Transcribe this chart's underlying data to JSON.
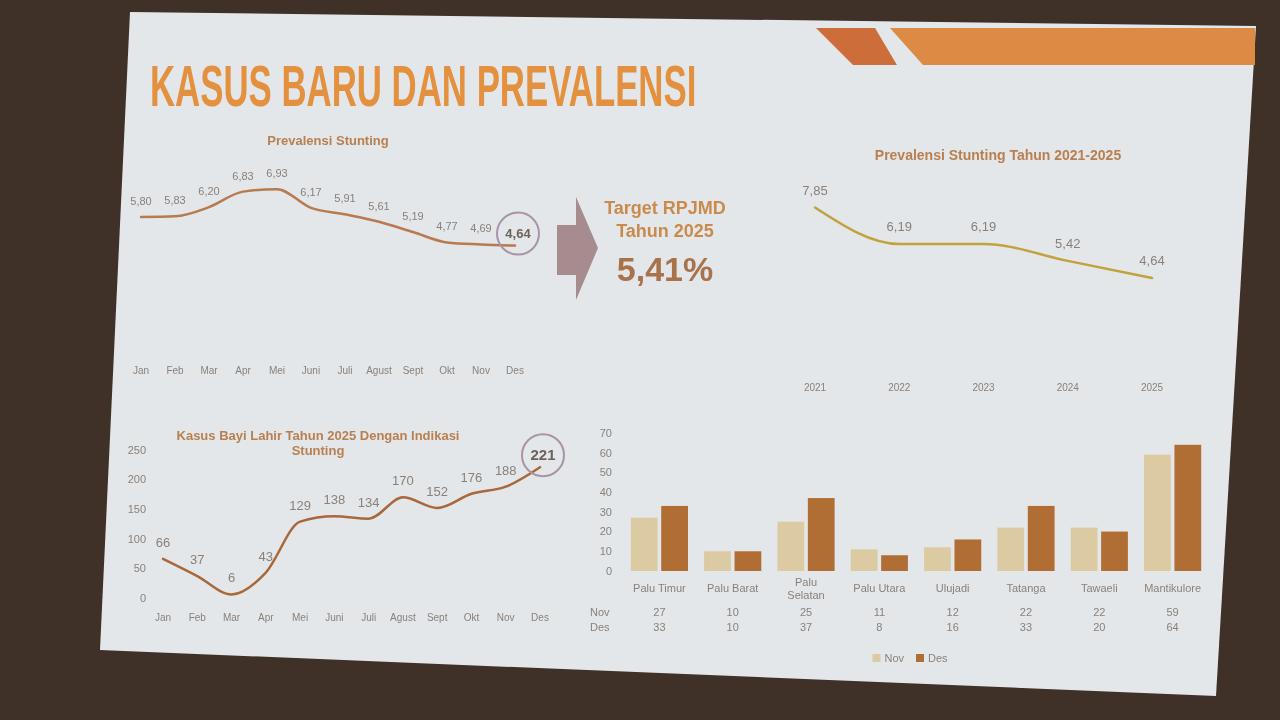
{
  "chart_data": [
    {
      "type": "other",
      "title": "KASUS BARU DAN PREVALENSI"
    },
    {
      "type": "line",
      "title": "Prevalensi Stunting",
      "categories": [
        "Jan",
        "Feb",
        "Mar",
        "Apr",
        "Mei",
        "Juni",
        "Juli",
        "Agust",
        "Sept",
        "Okt",
        "Nov",
        "Des"
      ],
      "values": [
        5.8,
        5.83,
        6.2,
        6.83,
        6.93,
        6.17,
        5.91,
        5.61,
        5.19,
        4.77,
        4.69,
        4.64
      ],
      "color": "#b87a4e",
      "value_labels": [
        "5,80",
        "5,83",
        "6,20",
        "6,83",
        "6,93",
        "6,17",
        "5,91",
        "5,61",
        "5,19",
        "4,77",
        "4,69",
        null
      ],
      "annotations": [
        {
          "text": "4,64",
          "x": "Des",
          "y": 4.64
        }
      ],
      "tick_labels": "x"
    },
    {
      "type": "other",
      "title": "Target RPJMD Tahun 2025",
      "annotations": [
        "5,41%"
      ]
    },
    {
      "type": "line",
      "title": "Prevalensi Stunting Tahun 2021-2025",
      "categories": [
        "2021",
        "2022",
        "2023",
        "2024",
        "2025"
      ],
      "values": [
        7.85,
        6.19,
        6.19,
        5.42,
        4.64
      ],
      "color": "#c2a23c",
      "value_labels": [
        "7,85",
        "6,19",
        "6,19",
        "5,42",
        "4,64"
      ],
      "tick_labels": "x"
    },
    {
      "type": "line",
      "title": "Kasus Bayi Lahir Tahun 2025 Dengan Indikasi Stunting",
      "categories": [
        "Jan",
        "Feb",
        "Mar",
        "Apr",
        "Mei",
        "Juni",
        "Juli",
        "Agust",
        "Sept",
        "Okt",
        "Nov",
        "Des"
      ],
      "values": [
        66,
        37,
        6,
        43,
        129,
        138,
        134,
        170,
        152,
        176,
        188,
        221
      ],
      "color": "#a8683a",
      "ylim": [
        0,
        250
      ],
      "yticks": [
        0,
        50,
        100,
        150,
        200,
        250
      ],
      "value_labels": [
        "66",
        "37",
        "6",
        "43",
        "129",
        "138",
        "134",
        "170",
        "152",
        "176",
        "188",
        null
      ],
      "annotations": [
        {
          "text": "221",
          "x": "Des",
          "y": 221
        }
      ]
    },
    {
      "type": "bar",
      "categories": [
        "Palu Timur",
        "Palu Barat",
        "Palu Selatan",
        "Palu Utara",
        "Ulujadi",
        "Tatanga",
        "Tawaeli",
        "Mantikulore"
      ],
      "series": [
        {
          "name": "Nov",
          "color": "#dccaa2",
          "values": [
            27,
            10,
            25,
            11,
            12,
            22,
            22,
            59
          ]
        },
        {
          "name": "Des",
          "color": "#b06e34",
          "values": [
            33,
            10,
            37,
            8,
            16,
            33,
            20,
            64
          ]
        }
      ],
      "ylim": [
        0,
        70
      ],
      "yticks": [
        0,
        10,
        20,
        30,
        40,
        50,
        60,
        70
      ],
      "data_labels": true,
      "legend": "bottom"
    }
  ]
}
